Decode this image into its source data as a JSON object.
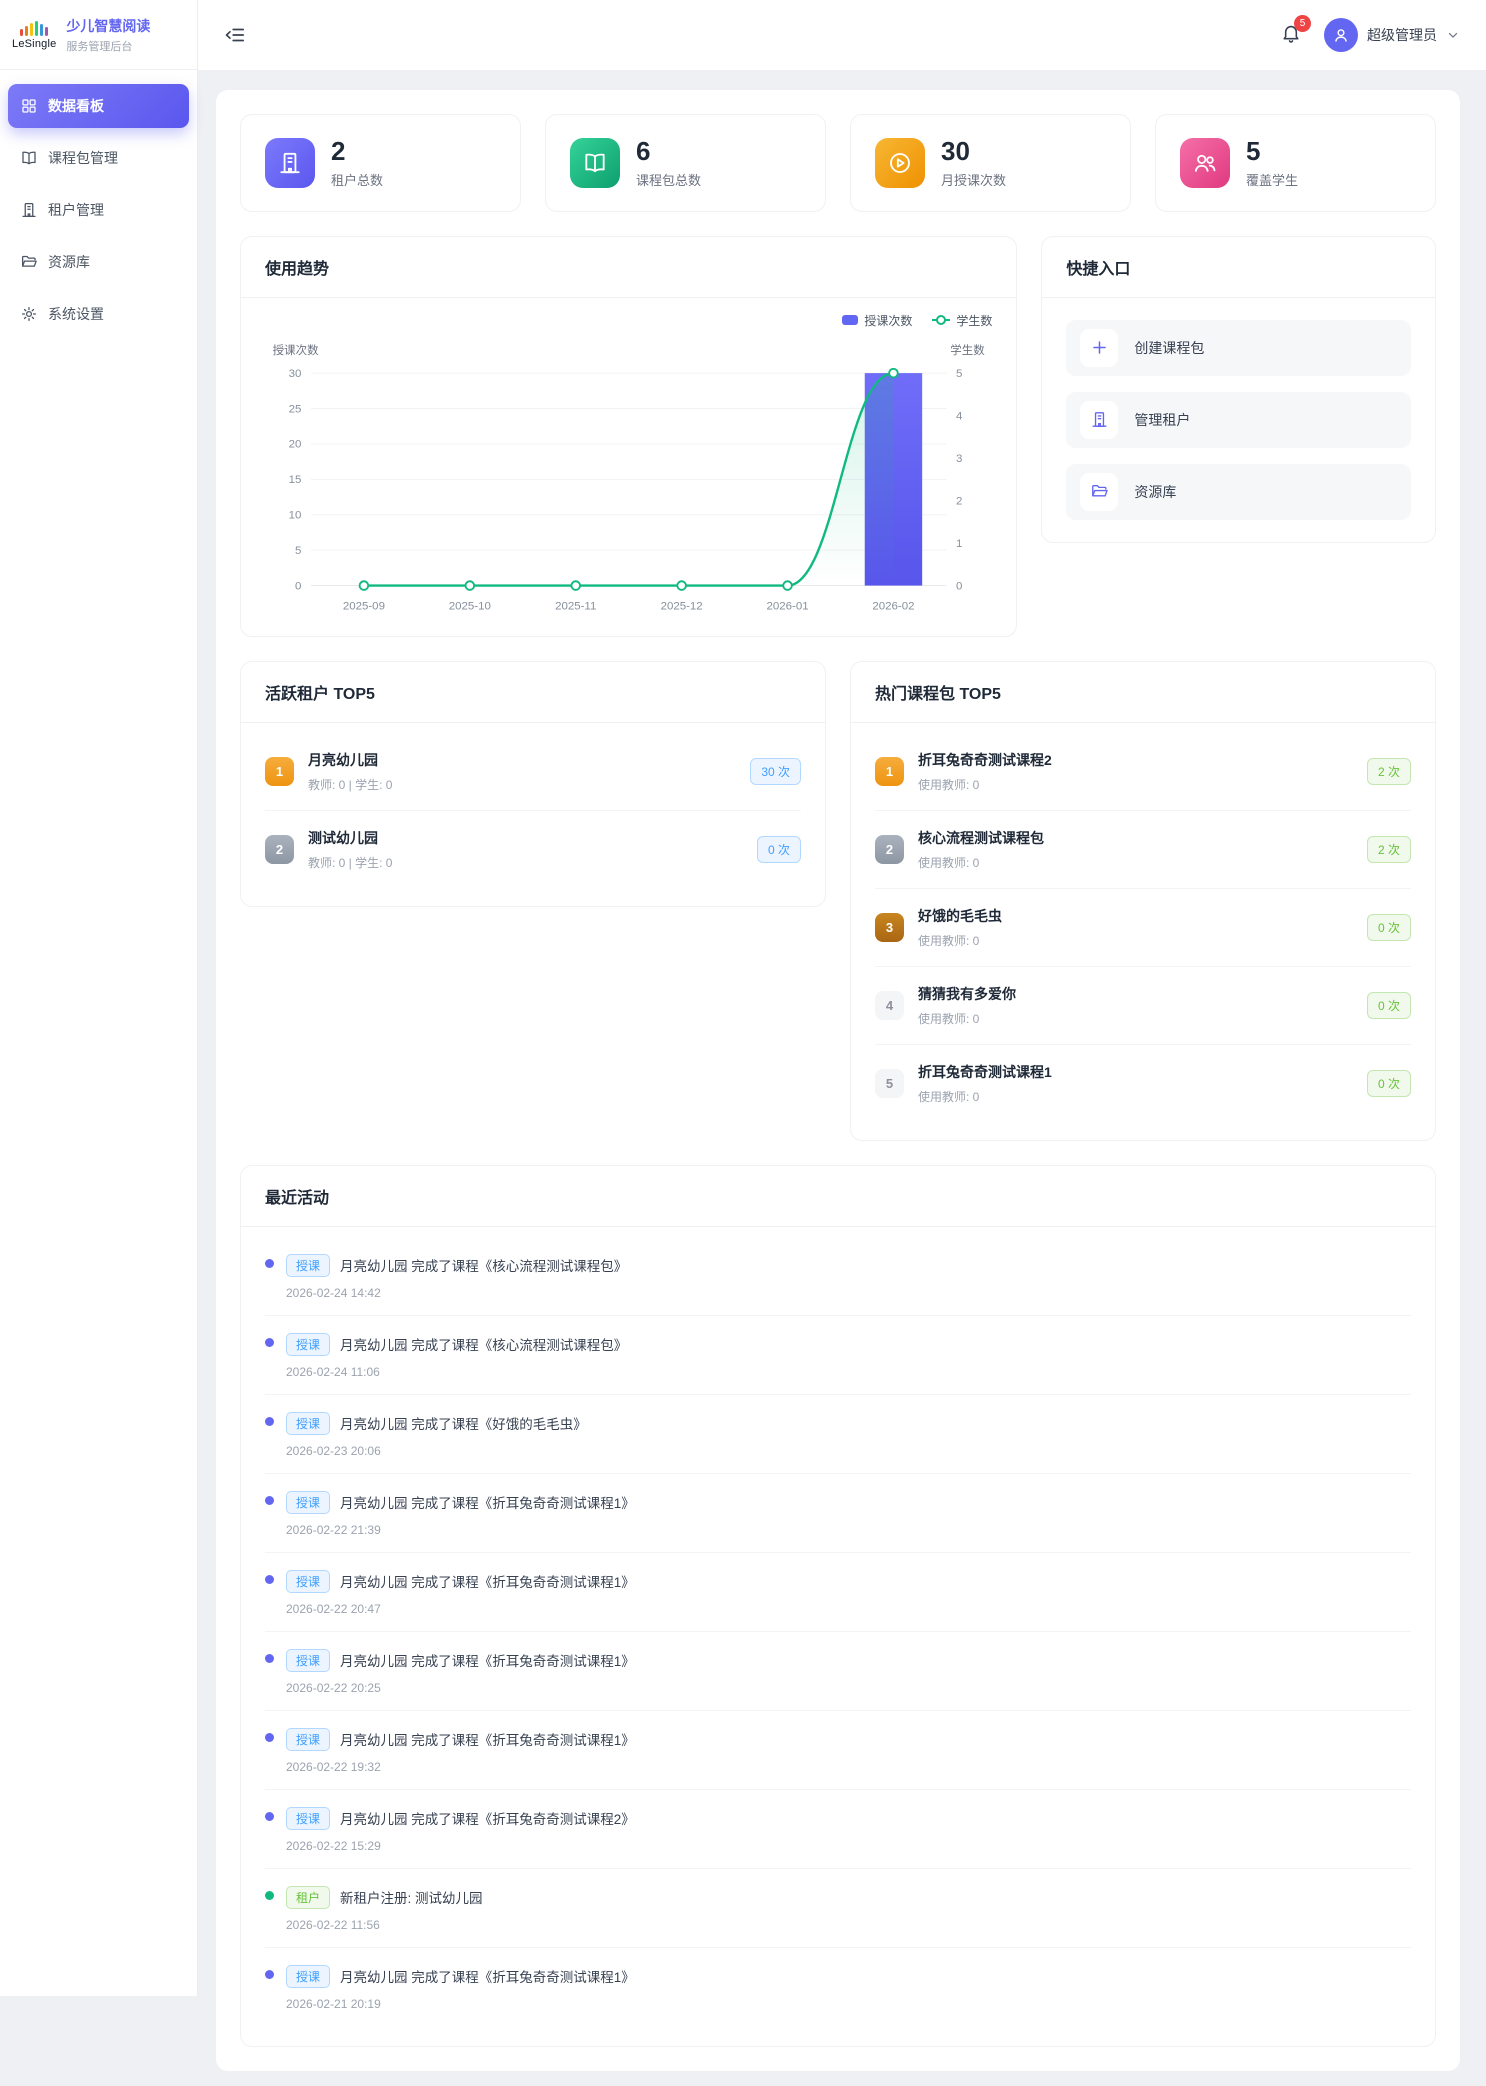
{
  "sidebar": {
    "logo_word": "LeSingle",
    "title": "少儿智慧阅读",
    "subtitle": "服务管理后台",
    "items": [
      {
        "label": "数据看板",
        "active": true
      },
      {
        "label": "课程包管理"
      },
      {
        "label": "租户管理"
      },
      {
        "label": "资源库"
      },
      {
        "label": "系统设置"
      }
    ]
  },
  "header": {
    "notification_count": "5",
    "user_name": "超级管理员"
  },
  "stats": [
    {
      "value": "2",
      "label": "租户总数",
      "color": "#6366f1"
    },
    {
      "value": "6",
      "label": "课程包总数",
      "color": "#10b981"
    },
    {
      "value": "30",
      "label": "月授课次数",
      "color": "#f59e0b"
    },
    {
      "value": "5",
      "label": "覆盖学生",
      "color": "#ec4899"
    }
  ],
  "trend": {
    "title": "使用趋势"
  },
  "chart_data": {
    "type": "bar+line",
    "title": "使用趋势",
    "categories": [
      "2025-09",
      "2025-10",
      "2025-11",
      "2025-12",
      "2026-01",
      "2026-02"
    ],
    "series": [
      {
        "name": "授课次数",
        "type": "bar",
        "axis": "left",
        "color": "#6366f1",
        "values": [
          0,
          0,
          0,
          0,
          0,
          30
        ]
      },
      {
        "name": "学生数",
        "type": "line",
        "axis": "right",
        "color": "#10b981",
        "values": [
          0,
          0,
          0,
          0,
          0,
          5
        ]
      }
    ],
    "left_axis": {
      "title": "授课次数",
      "ticks": [
        0,
        5,
        10,
        15,
        20,
        25,
        30
      ],
      "max": 30
    },
    "right_axis": {
      "title": "学生数",
      "ticks": [
        0,
        1,
        2,
        3,
        4,
        5
      ],
      "max": 5
    },
    "legend_position": "top-right",
    "grid": true
  },
  "quick_links": {
    "title": "快捷入口",
    "items": [
      {
        "label": "创建课程包"
      },
      {
        "label": "管理租户"
      },
      {
        "label": "资源库"
      }
    ]
  },
  "active_tenants": {
    "title": "活跃租户 TOP5",
    "items": [
      {
        "rank": "1",
        "name": "月亮幼儿园",
        "meta": "教师: 0 | 学生: 0",
        "count": "30 次"
      },
      {
        "rank": "2",
        "name": "测试幼儿园",
        "meta": "教师: 0 | 学生: 0",
        "count": "0 次"
      }
    ]
  },
  "hot_packages": {
    "title": "热门课程包 TOP5",
    "items": [
      {
        "rank": "1",
        "name": "折耳兔奇奇测试课程2",
        "meta": "使用教师: 0",
        "count": "2 次"
      },
      {
        "rank": "2",
        "name": "核心流程测试课程包",
        "meta": "使用教师: 0",
        "count": "2 次"
      },
      {
        "rank": "3",
        "name": "好饿的毛毛虫",
        "meta": "使用教师: 0",
        "count": "0 次"
      },
      {
        "rank": "4",
        "name": "猜猜我有多爱你",
        "meta": "使用教师: 0",
        "count": "0 次"
      },
      {
        "rank": "5",
        "name": "折耳兔奇奇测试课程1",
        "meta": "使用教师: 0",
        "count": "0 次"
      }
    ]
  },
  "recent_activities": {
    "title": "最近活动",
    "items": [
      {
        "tag": "授课",
        "type": "teach",
        "text": "月亮幼儿园 完成了课程《核心流程测试课程包》",
        "time": "2026-02-24 14:42"
      },
      {
        "tag": "授课",
        "type": "teach",
        "text": "月亮幼儿园 完成了课程《核心流程测试课程包》",
        "time": "2026-02-24 11:06"
      },
      {
        "tag": "授课",
        "type": "teach",
        "text": "月亮幼儿园 完成了课程《好饿的毛毛虫》",
        "time": "2026-02-23 20:06"
      },
      {
        "tag": "授课",
        "type": "teach",
        "text": "月亮幼儿园 完成了课程《折耳兔奇奇测试课程1》",
        "time": "2026-02-22 21:39"
      },
      {
        "tag": "授课",
        "type": "teach",
        "text": "月亮幼儿园 完成了课程《折耳兔奇奇测试课程1》",
        "time": "2026-02-22 20:47"
      },
      {
        "tag": "授课",
        "type": "teach",
        "text": "月亮幼儿园 完成了课程《折耳兔奇奇测试课程1》",
        "time": "2026-02-22 20:25"
      },
      {
        "tag": "授课",
        "type": "teach",
        "text": "月亮幼儿园 完成了课程《折耳兔奇奇测试课程1》",
        "time": "2026-02-22 19:32"
      },
      {
        "tag": "授课",
        "type": "teach",
        "text": "月亮幼儿园 完成了课程《折耳兔奇奇测试课程2》",
        "time": "2026-02-22 15:29"
      },
      {
        "tag": "租户",
        "type": "tenant",
        "text": "新租户注册: 测试幼儿园",
        "time": "2026-02-22 11:56"
      },
      {
        "tag": "授课",
        "type": "teach",
        "text": "月亮幼儿园 完成了课程《折耳兔奇奇测试课程1》",
        "time": "2026-02-21 20:19"
      }
    ]
  },
  "colors": {
    "accent": "#6366f1",
    "success": "#10b981",
    "warning": "#f59e0b",
    "danger": "#ef4444",
    "pink": "#ec4899"
  }
}
